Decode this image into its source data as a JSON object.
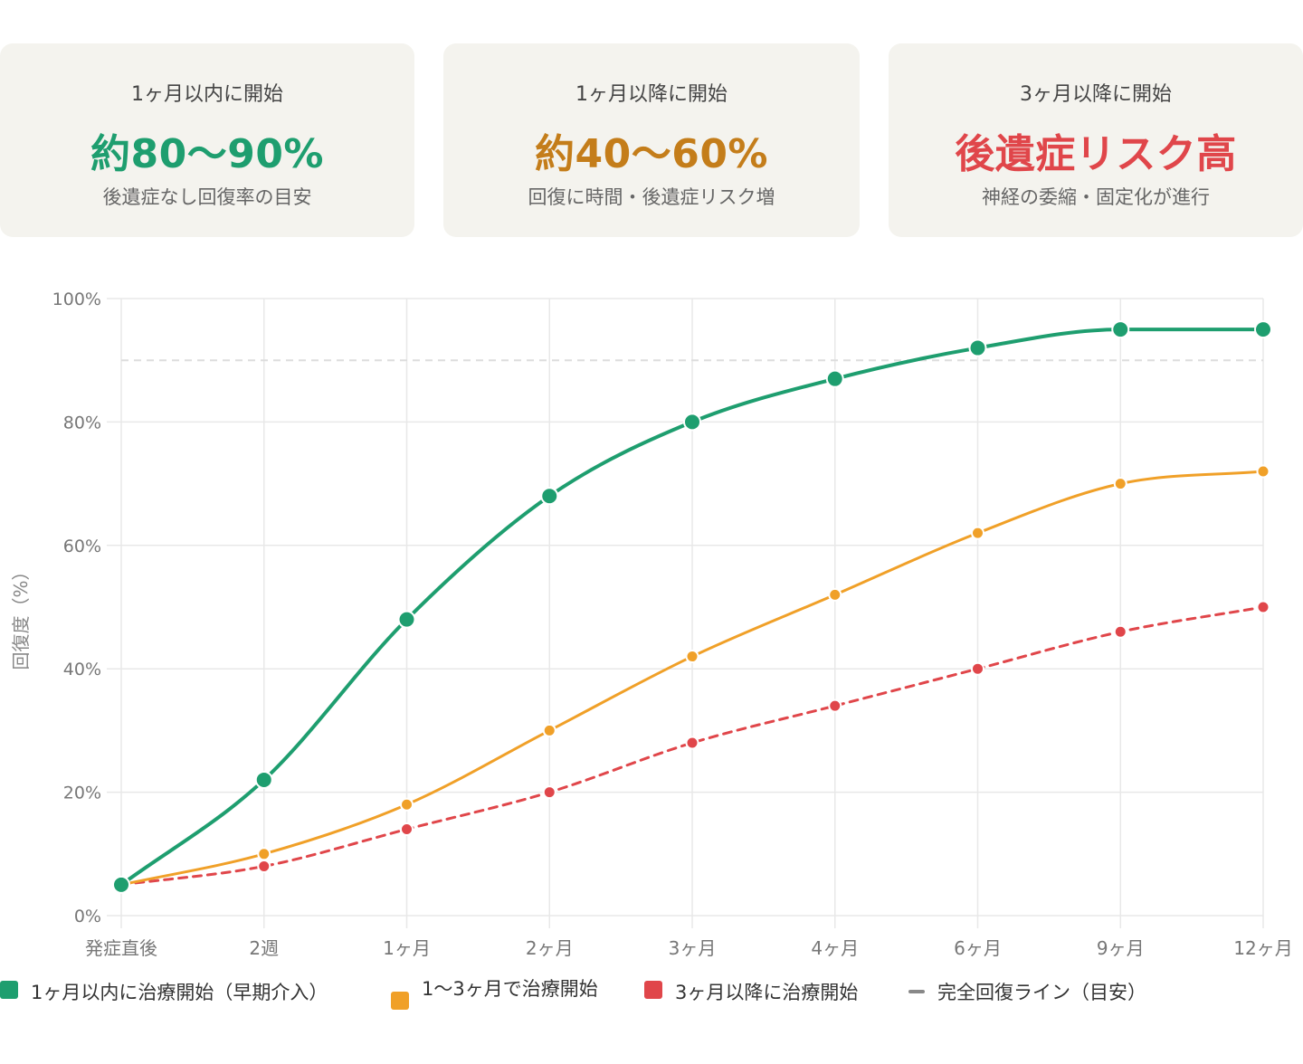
{
  "cards": [
    {
      "label": "1ヶ月以内に開始",
      "value": "約80〜90%",
      "sub": "後遺症なし回復率の目安",
      "color": "#1e9e6f"
    },
    {
      "label": "1ヶ月以降に開始",
      "value": "約40〜60%",
      "sub": "回復に時間・後遺症リスク増",
      "color": "#c47d1a"
    },
    {
      "label": "3ヶ月以降に開始",
      "value": "後遺症リスク高",
      "sub": "神経の委縮・固定化が進行",
      "color": "#e0464a"
    }
  ],
  "chart_data": {
    "type": "line",
    "categories": [
      "発症直後",
      "2週",
      "1ヶ月",
      "2ヶ月",
      "3ヶ月",
      "4ヶ月",
      "6ヶ月",
      "9ヶ月",
      "12ヶ月"
    ],
    "ylabel": "回復度（%）",
    "ylim": [
      0,
      100
    ],
    "yticks": [
      0,
      20,
      40,
      60,
      80,
      100
    ],
    "ytick_labels": [
      "0%",
      "20%",
      "40%",
      "60%",
      "80%",
      "100%"
    ],
    "grid": true,
    "series": [
      {
        "name": "1ヶ月以内に治療開始（早期介入）",
        "values": [
          5,
          22,
          48,
          68,
          80,
          87,
          92,
          95,
          95
        ],
        "color": "#1e9e6f",
        "dashed": false,
        "emphasis": true
      },
      {
        "name": "1〜3ヶ月で治療開始",
        "values": [
          5,
          10,
          18,
          30,
          42,
          52,
          62,
          70,
          72
        ],
        "color": "#f0a028",
        "dashed": false,
        "emphasis": false
      },
      {
        "name": "3ヶ月以降に治療開始",
        "values": [
          5,
          8,
          14,
          20,
          28,
          34,
          40,
          46,
          50
        ],
        "color": "#e0464a",
        "dashed": true,
        "emphasis": false
      }
    ],
    "reference_line": {
      "name": "完全回復ライン（目安）",
      "value": 90,
      "color": "#888888"
    }
  },
  "legend": [
    {
      "label": "1ヶ月以内に治療開始（早期介入）",
      "color": "#1e9e6f"
    },
    {
      "label": "1〜3ヶ月で治療開始",
      "color": "#f0a028"
    },
    {
      "label": "3ヶ月以降に治療開始",
      "color": "#e0464a"
    },
    {
      "label": "完全回復ライン（目安）",
      "color": "#888888"
    }
  ]
}
